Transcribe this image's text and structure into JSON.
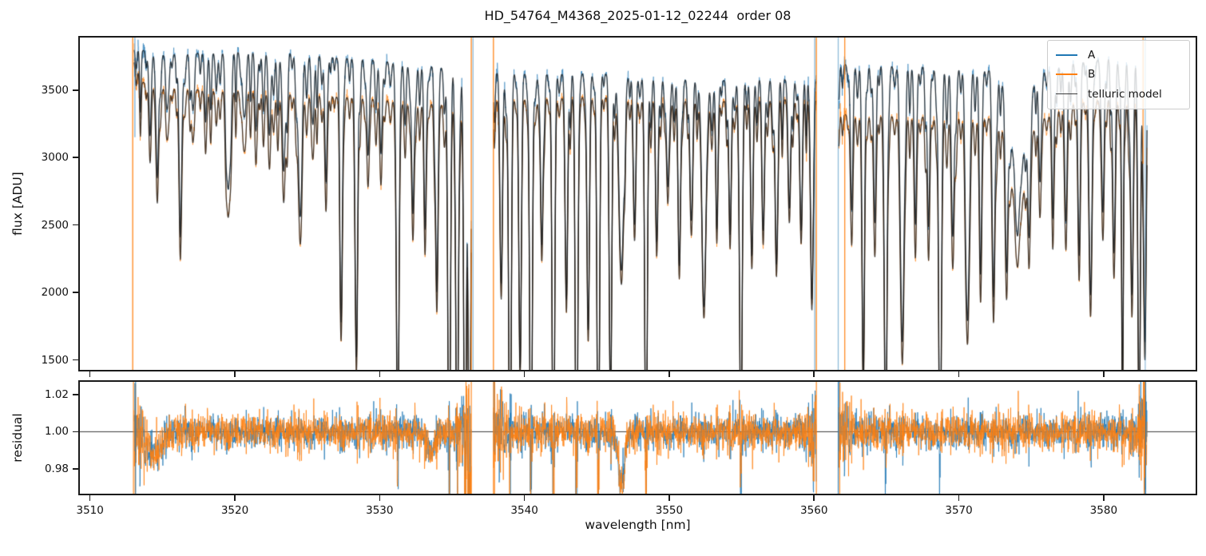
{
  "chart_data": {
    "type": "line",
    "title": "HD_54764_M4368_2025-01-12_02244  order 08",
    "xlabel": "wavelength [nm]",
    "grid": false,
    "x_axis": {
      "lim": [
        3509.3,
        3586.35
      ],
      "ticks": [
        {
          "v": 3510,
          "label": "3510"
        },
        {
          "v": 3520,
          "label": "3520"
        },
        {
          "v": 3530,
          "label": "3530"
        },
        {
          "v": 3540,
          "label": "3540"
        },
        {
          "v": 3550,
          "label": "3550"
        },
        {
          "v": 3560,
          "label": "3560"
        },
        {
          "v": 3570,
          "label": "3570"
        },
        {
          "v": 3580,
          "label": "3580"
        }
      ]
    },
    "panels": [
      {
        "name": "flux",
        "ylabel": "flux [ADU]",
        "lim": [
          1427,
          3889
        ],
        "ticks": [
          {
            "v": 1500,
            "label": "1500"
          },
          {
            "v": 2000,
            "label": "2000"
          },
          {
            "v": 2500,
            "label": "2500"
          },
          {
            "v": 3000,
            "label": "3000"
          },
          {
            "v": 3500,
            "label": "3500"
          }
        ]
      },
      {
        "name": "residual",
        "ylabel": "residual",
        "lim": [
          0.9666,
          1.0269
        ],
        "hline": 1.0,
        "ticks": [
          {
            "v": 0.98,
            "label": "0.98"
          },
          {
            "v": 1.0,
            "label": "1.00"
          },
          {
            "v": 1.02,
            "label": "1.02"
          }
        ]
      }
    ],
    "legend": {
      "position": "upper right",
      "entries": [
        {
          "label": "A",
          "color": "#1f77b4",
          "lw": 2.5
        },
        {
          "label": "B",
          "color": "#ff7f0e",
          "lw": 2.5
        },
        {
          "label": "telluric model",
          "color": "#3d3d3d",
          "lw": 1.8
        }
      ]
    },
    "colors": {
      "A": "#1f77b4",
      "B": "#ff7f0e",
      "model": "#191919",
      "spine": "#1a1a1a",
      "hline": "#3a3a3a"
    },
    "data_x_range_nm": [
      3513.0,
      3583.0
    ],
    "segments_nm": [
      [
        3513.05,
        3536.33
      ],
      [
        3537.86,
        3560.16
      ],
      [
        3561.7,
        3583.0
      ]
    ],
    "sampling_step_nm": 0.018,
    "continuum_A": [
      [
        3513,
        3810
      ],
      [
        3515,
        3760
      ],
      [
        3518,
        3775
      ],
      [
        3521,
        3785
      ],
      [
        3524,
        3775
      ],
      [
        3527,
        3740
      ],
      [
        3530,
        3720
      ],
      [
        3533,
        3680
      ],
      [
        3536,
        3650
      ],
      [
        3538,
        3630
      ],
      [
        3541,
        3615
      ],
      [
        3544,
        3625
      ],
      [
        3547,
        3615
      ],
      [
        3550,
        3580
      ],
      [
        3553,
        3565
      ],
      [
        3556,
        3585
      ],
      [
        3559,
        3575
      ],
      [
        3560.2,
        3570
      ],
      [
        3561.7,
        3690
      ],
      [
        3565,
        3680
      ],
      [
        3568,
        3670
      ],
      [
        3571,
        3650
      ],
      [
        3576,
        3640
      ],
      [
        3578,
        3700
      ],
      [
        3580,
        3730
      ],
      [
        3582,
        3740
      ],
      [
        3583,
        3700
      ]
    ],
    "continuum_B": [
      [
        3513,
        3730
      ],
      [
        3513.6,
        3560
      ],
      [
        3515,
        3510
      ],
      [
        3518,
        3500
      ],
      [
        3521,
        3490
      ],
      [
        3524,
        3470
      ],
      [
        3527,
        3450
      ],
      [
        3530,
        3430
      ],
      [
        3533,
        3400
      ],
      [
        3536,
        3380
      ],
      [
        3538,
        3420
      ],
      [
        3541,
        3430
      ],
      [
        3544,
        3450
      ],
      [
        3547,
        3440
      ],
      [
        3550,
        3420
      ],
      [
        3553,
        3410
      ],
      [
        3556,
        3430
      ],
      [
        3559,
        3430
      ],
      [
        3560.2,
        3425
      ],
      [
        3561.7,
        3320
      ],
      [
        3565,
        3310
      ],
      [
        3568,
        3300
      ],
      [
        3571,
        3290
      ],
      [
        3576,
        3300
      ],
      [
        3578,
        3400
      ],
      [
        3580,
        3430
      ],
      [
        3582,
        3430
      ],
      [
        3583,
        3400
      ]
    ],
    "telluric_lines": [
      [
        3514.15,
        0.13
      ],
      [
        3514.65,
        0.24
      ],
      [
        3515.4,
        0.08
      ],
      [
        3516.25,
        0.3,
        0.1
      ],
      [
        3517.1,
        0.11
      ],
      [
        3518.0,
        0.1
      ],
      [
        3519.55,
        0.26,
        0.12
      ],
      [
        3520.6,
        0.11
      ],
      [
        3521.5,
        0.09
      ],
      [
        3522.4,
        0.15
      ],
      [
        3523.4,
        0.18,
        0.12
      ],
      [
        3524.5,
        0.3,
        0.12
      ],
      [
        3525.4,
        0.13
      ],
      [
        3526.3,
        0.22
      ],
      [
        3527.35,
        0.5
      ],
      [
        3528.4,
        0.58
      ],
      [
        3529.2,
        0.19
      ],
      [
        3530.1,
        0.15
      ],
      [
        3531.25,
        0.8
      ],
      [
        3532.3,
        0.3
      ],
      [
        3533.15,
        0.26
      ],
      [
        3533.95,
        0.45
      ],
      [
        3534.8,
        0.88
      ],
      [
        3535.35,
        0.85
      ],
      [
        3535.9,
        0.92
      ],
      [
        3536.2,
        0.9
      ],
      [
        3538.4,
        0.42
      ],
      [
        3539.0,
        0.85
      ],
      [
        3539.7,
        0.6
      ],
      [
        3540.45,
        0.88
      ],
      [
        3541.2,
        0.35
      ],
      [
        3542.0,
        0.9
      ],
      [
        3542.9,
        0.46
      ],
      [
        3543.6,
        0.92
      ],
      [
        3544.4,
        0.5
      ],
      [
        3545.1,
        0.88
      ],
      [
        3545.95,
        0.65
      ],
      [
        3546.7,
        0.4,
        0.16
      ],
      [
        3547.6,
        0.3
      ],
      [
        3548.4,
        0.82
      ],
      [
        3549.15,
        0.3
      ],
      [
        3549.9,
        0.22
      ],
      [
        3550.7,
        0.36
      ],
      [
        3551.5,
        0.25
      ],
      [
        3552.4,
        0.46,
        0.14
      ],
      [
        3553.3,
        0.22
      ],
      [
        3554.2,
        0.28
      ],
      [
        3554.95,
        0.78
      ],
      [
        3555.7,
        0.3
      ],
      [
        3556.5,
        0.28
      ],
      [
        3557.4,
        0.38
      ],
      [
        3558.3,
        0.26
      ],
      [
        3559.1,
        0.3
      ],
      [
        3559.85,
        0.45
      ],
      [
        3562.6,
        0.26
      ],
      [
        3563.4,
        0.62
      ],
      [
        3564.2,
        0.3
      ],
      [
        3564.95,
        0.8
      ],
      [
        3566.1,
        0.55,
        0.12
      ],
      [
        3567.0,
        0.3
      ],
      [
        3567.9,
        0.28
      ],
      [
        3568.7,
        0.88
      ],
      [
        3569.6,
        0.3
      ],
      [
        3570.6,
        0.5,
        0.12
      ],
      [
        3571.5,
        0.4
      ],
      [
        3572.4,
        0.45
      ],
      [
        3573.3,
        0.35
      ],
      [
        3574.1,
        0.21,
        0.55
      ],
      [
        3574.05,
        0.16,
        0.12
      ],
      [
        3574.85,
        0.28
      ],
      [
        3575.6,
        0.22
      ],
      [
        3576.5,
        0.25
      ],
      [
        3577.4,
        0.3
      ],
      [
        3578.3,
        0.35
      ],
      [
        3579.1,
        0.46,
        0.1
      ],
      [
        3579.95,
        0.3
      ],
      [
        3580.7,
        0.36
      ],
      [
        3581.3,
        0.68,
        0.06
      ],
      [
        3581.95,
        0.46
      ],
      [
        3582.45,
        0.72
      ],
      [
        3582.85,
        0.55
      ]
    ],
    "weak_line_comb": {
      "seed": 7,
      "start": 3511.2,
      "end": 3585.0,
      "spacing_min": 0.24,
      "spacing_rand": 0.18,
      "depth_min": 0.025,
      "depth_rand": 0.1,
      "sigma_min": 0.045,
      "sigma_rand": 0.028,
      "default_sigma": 0.085
    },
    "noise": {
      "flux_sigma": 0.0055,
      "residual_sigma_A": 0.0042,
      "residual_sigma_B": 0.0048,
      "edge_boost_nm": 1.2,
      "seed_A": 11,
      "seed_B": 23,
      "seed_rA": 31,
      "seed_rB": 47
    },
    "residual_dips": [
      [
        3546.7,
        -0.028,
        0.22
      ],
      [
        3514.4,
        -0.012,
        0.55
      ],
      [
        3533.6,
        -0.01,
        0.3
      ]
    ],
    "flux_spikes": [
      [
        3512.95,
        "B",
        0.95,
        0,
        1
      ],
      [
        3513.1,
        "A",
        0.6,
        0,
        0.3
      ],
      [
        3536.33,
        "B",
        0.95,
        0,
        1
      ],
      [
        3536.45,
        "A",
        0.5,
        0,
        1
      ],
      [
        3537.86,
        "B",
        0.95,
        0,
        1
      ],
      [
        3560.05,
        "A",
        0.55,
        0,
        1
      ],
      [
        3560.16,
        "B",
        0.95,
        0,
        1
      ],
      [
        3561.67,
        "A",
        0.5,
        0,
        1
      ],
      [
        3562.12,
        "B",
        0.9,
        0,
        1
      ],
      [
        3582.72,
        "B",
        0.85,
        0,
        0.38
      ],
      [
        3582.87,
        "A",
        0.45,
        0,
        1
      ]
    ],
    "residual_spikes": [
      [
        3513.0,
        "B"
      ],
      [
        3513.15,
        "A"
      ],
      [
        3536.33,
        "B"
      ],
      [
        3537.86,
        "B"
      ],
      [
        3560.16,
        "B"
      ],
      [
        3561.67,
        "A"
      ],
      [
        3582.8,
        "B"
      ],
      [
        3582.9,
        "A"
      ]
    ]
  }
}
